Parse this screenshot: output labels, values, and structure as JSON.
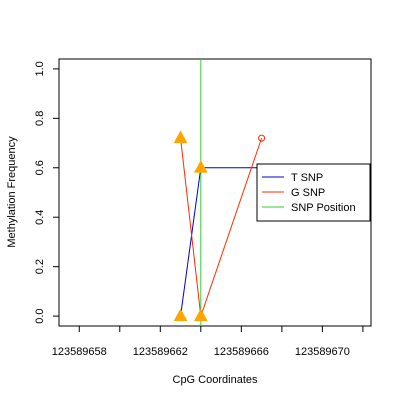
{
  "chart_data": {
    "type": "line",
    "title": "",
    "xlabel": "CpG Coordinates",
    "ylabel": "Methylation Frequency",
    "xlim": [
      123589657,
      123589672.4
    ],
    "ylim": [
      -0.04,
      1.04
    ],
    "x_ticks": [
      123589658,
      123589660,
      123589662,
      123589664,
      123589666,
      123589668,
      123589670,
      123589672
    ],
    "x_tick_labels": [
      "123589658",
      "123589662",
      "123589666",
      "123589670"
    ],
    "y_ticks": [
      0.0,
      0.2,
      0.4,
      0.6,
      0.8,
      1.0
    ],
    "y_tick_labels": [
      "0.0",
      "0.2",
      "0.4",
      "0.6",
      "0.8",
      "1.0"
    ],
    "grid": false,
    "legend_position": "right",
    "series": [
      {
        "name": "T SNP",
        "color": "#0000cc",
        "points": [
          {
            "x": 123589663,
            "y": 0.0
          },
          {
            "x": 123589664,
            "y": 0.6
          },
          {
            "x": 123589667,
            "y": 0.6
          }
        ]
      },
      {
        "name": "G SNP",
        "color": "#ff2a00",
        "points": [
          {
            "x": 123589663,
            "y": 0.72
          },
          {
            "x": 123589664,
            "y": 0.0
          },
          {
            "x": 123589667,
            "y": 0.72
          }
        ]
      },
      {
        "name": "SNP Position",
        "color": "#33cc33",
        "vline_x": 123589664
      }
    ],
    "markers": [
      {
        "x": 123589663,
        "y": 0.72,
        "shape": "triangle",
        "color": "#ffa500"
      },
      {
        "x": 123589663,
        "y": 0.0,
        "shape": "triangle",
        "color": "#ffa500"
      },
      {
        "x": 123589664,
        "y": 0.6,
        "shape": "triangle",
        "color": "#ffa500"
      },
      {
        "x": 123589664,
        "y": 0.0,
        "shape": "triangle",
        "color": "#ffa500"
      },
      {
        "x": 123589667,
        "y": 0.6,
        "shape": "circle",
        "color": "#0000cc"
      },
      {
        "x": 123589667,
        "y": 0.72,
        "shape": "circle",
        "color": "#ff2a00"
      }
    ]
  }
}
